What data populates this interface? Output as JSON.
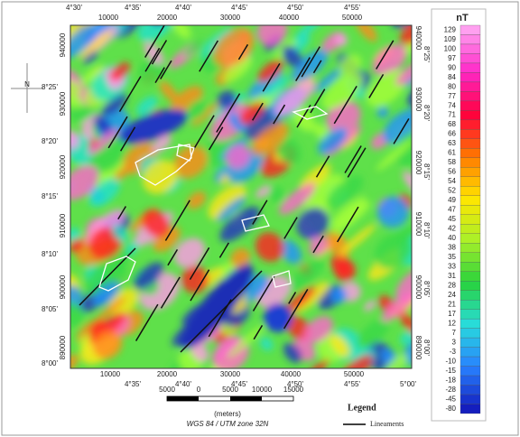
{
  "map": {
    "top_degrees": [
      "4°30'",
      "4°35'",
      "4°40'",
      "4°45'",
      "4°50'",
      "4°55'"
    ],
    "top_utm": [
      "10000",
      "20000",
      "30000",
      "40000",
      "50000"
    ],
    "bottom_utm": [
      "10000",
      "20000",
      "30000",
      "40000",
      "50000"
    ],
    "bottom_degrees": [
      "4°35'",
      "4°40'",
      "4°45'",
      "4°50'",
      "4°55'",
      "5°00'"
    ],
    "left_utm": [
      "940000",
      "930000",
      "920000",
      "910000",
      "900000",
      "890000"
    ],
    "left_degrees": [
      "8°25'",
      "8°20'",
      "8°15'",
      "8°10'",
      "8°05'",
      "8°00'"
    ],
    "right_utm": [
      "940000",
      "930000",
      "920000",
      "910000",
      "900000",
      "890000"
    ],
    "right_degrees": [
      "8°25'",
      "8°20'",
      "8°15'",
      "8°10'",
      "8°05'",
      "8°00'"
    ],
    "north": "N"
  },
  "colorbar": {
    "title": "nT",
    "labels": [
      "129",
      "109",
      "100",
      "97",
      "90",
      "84",
      "80",
      "77",
      "74",
      "71",
      "68",
      "66",
      "63",
      "61",
      "58",
      "56",
      "54",
      "52",
      "49",
      "47",
      "45",
      "42",
      "40",
      "38",
      "35",
      "33",
      "31",
      "28",
      "24",
      "21",
      "17",
      "12",
      "7",
      "3",
      "-3",
      "-10",
      "-15",
      "-18",
      "-28",
      "-45",
      "-80"
    ]
  },
  "scale_bar": {
    "labels": [
      "5000",
      "0",
      "5000",
      "10000",
      "15000"
    ],
    "unit": "(meters)",
    "projection": "WGS 84 / UTM zone 32N"
  },
  "legend": {
    "title": "Legend",
    "items": [
      "Lineaments"
    ]
  }
}
